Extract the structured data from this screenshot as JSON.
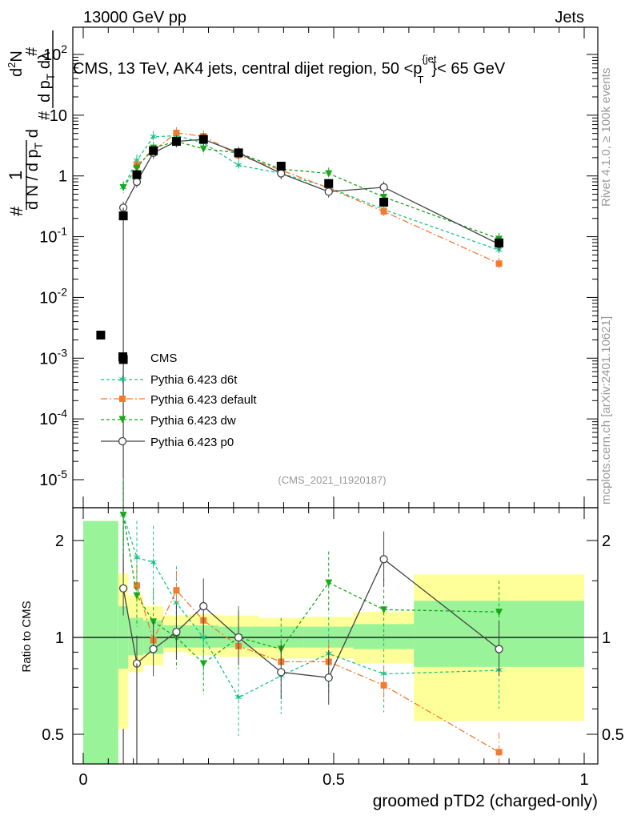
{
  "header": {
    "left": "13000 GeV pp",
    "right": "Jets"
  },
  "plot_title": "CMS, 13 TeV, AK4 jets, central dijet region, 50 <p_T^{jet}< 65 GeV",
  "plot_title_parts": {
    "a": "CMS, 13 TeV, AK4 jets, central dijet region, 50 <p",
    "sup": "{jet",
    "sub": "T",
    "b": "}< 65 GeV"
  },
  "side_text": {
    "rivet": "Rivet 4.1.0, ≥ 100k events",
    "mcplots": "mcplots.cern.ch [arXiv:2401.10621]"
  },
  "analysis_id": "(CMS_2021_I1920187)",
  "legend": {
    "cms": "CMS",
    "d6t": "Pythia 6.423 d6t",
    "default": "Pythia 6.423 default",
    "dw": "Pythia 6.423 dw",
    "p0": "Pythia 6.423 p0"
  },
  "colors": {
    "cms": "#000000",
    "d6t": "#17c48a",
    "default": "#f47a30",
    "dw": "#18a818",
    "p0": "#444444",
    "band_yellow": "#ffff99",
    "band_green": "#99f399"
  },
  "chart_data": {
    "type": "line",
    "xlabel": "groomed pTD2 (charged-only)",
    "ylabel_main": "1/N dN/dp_T dλ / d²N/dp_T dλ",
    "ylabel_ratio": "Ratio to CMS",
    "xlim": [
      0,
      1
    ],
    "ylim_main": [
      3e-06,
      300
    ],
    "ylim_ratio": [
      0.33,
      2.3
    ],
    "x_ticks": [
      "0",
      "0.5",
      "1"
    ],
    "y_ticks_main": [
      "10^{-5}",
      "10^{-4}",
      "10^{-3}",
      "10^{-2}",
      "10^{-1}",
      "1",
      "10",
      "10^{2}"
    ],
    "y_ticks_ratio": [
      "0.5",
      "1",
      "2"
    ],
    "cms": {
      "x": [
        0.035,
        0.08,
        0.107,
        0.14,
        0.186,
        0.24,
        0.31,
        0.395,
        0.49,
        0.6,
        0.83
      ],
      "y": [
        0.0024,
        0.22,
        1.05,
        2.6,
        3.7,
        4.0,
        2.4,
        1.45,
        0.75,
        0.37,
        0.079
      ],
      "y_extra": {
        "x": 0.08,
        "y": 0.00095
      }
    },
    "d6t": {
      "x": [
        0.08,
        0.107,
        0.14,
        0.186,
        0.24,
        0.31,
        0.395,
        0.49,
        0.6,
        0.83
      ],
      "y": [
        0.65,
        1.8,
        4.4,
        4.6,
        3.5,
        1.5,
        1.1,
        0.65,
        0.28,
        0.06
      ]
    },
    "default": {
      "x": [
        0.107,
        0.14,
        0.186,
        0.24,
        0.31,
        0.395,
        0.49,
        0.6,
        0.83
      ],
      "y": [
        1.5,
        2.6,
        5.1,
        4.5,
        2.2,
        1.25,
        0.63,
        0.26,
        0.036
      ]
    },
    "dw": {
      "x": [
        0.08,
        0.107,
        0.14,
        0.186,
        0.24,
        0.31,
        0.395,
        0.49,
        0.6,
        0.83
      ],
      "y": [
        0.65,
        1.35,
        2.9,
        3.7,
        2.8,
        2.4,
        1.3,
        1.1,
        0.45,
        0.092
      ]
    },
    "p0": {
      "x": [
        0.08,
        0.107,
        0.14,
        0.186,
        0.24,
        0.31,
        0.395,
        0.49,
        0.6,
        0.83
      ],
      "y": [
        0.3,
        0.8,
        2.4,
        3.7,
        4.0,
        2.4,
        1.1,
        0.55,
        0.65,
        0.075
      ]
    },
    "ratio": {
      "d6t": {
        "x": [
          0.08,
          0.107,
          0.14,
          0.186,
          0.24,
          0.31,
          0.395,
          0.49,
          0.6,
          0.83
        ],
        "y": [
          2.4,
          1.77,
          1.71,
          1.28,
          1.0,
          0.65,
          0.76,
          0.89,
          0.77,
          0.79
        ]
      },
      "default": {
        "x": [
          0.107,
          0.14,
          0.186,
          0.24,
          0.31,
          0.395,
          0.49,
          0.6,
          0.83
        ],
        "y": [
          1.45,
          0.98,
          1.4,
          1.13,
          0.94,
          0.84,
          0.84,
          0.71,
          0.44
        ]
      },
      "dw": {
        "x": [
          0.08,
          0.107,
          0.14,
          0.186,
          0.24,
          0.31,
          0.395,
          0.49,
          0.6,
          0.83
        ],
        "y": [
          2.4,
          1.35,
          1.12,
          1.0,
          0.83,
          1.0,
          0.92,
          1.48,
          1.22,
          1.2
        ]
      },
      "p0": {
        "x": [
          0.08,
          0.107,
          0.14,
          0.186,
          0.24,
          0.31,
          0.395,
          0.49,
          0.6,
          0.83
        ],
        "y": [
          1.42,
          0.83,
          0.92,
          1.04,
          1.25,
          1.0,
          0.78,
          0.75,
          1.75,
          0.92
        ]
      }
    },
    "bands": {
      "edges": [
        0,
        0.07,
        0.09,
        0.12,
        0.16,
        0.21,
        0.27,
        0.35,
        0.44,
        0.54,
        0.66,
        1.0
      ],
      "yellow": [
        [
          0.33,
          2.3
        ],
        [
          0.52,
          1.58
        ],
        [
          0.78,
          1.35
        ],
        [
          0.82,
          1.25
        ],
        [
          0.9,
          1.17
        ],
        [
          0.88,
          1.18
        ],
        [
          0.87,
          1.17
        ],
        [
          0.86,
          1.15
        ],
        [
          0.86,
          1.16
        ],
        [
          0.83,
          1.2
        ],
        [
          0.55,
          1.57
        ]
      ],
      "green": [
        [
          0.33,
          2.3
        ],
        [
          0.8,
          1.25
        ],
        [
          0.88,
          1.15
        ],
        [
          0.89,
          1.13
        ],
        [
          0.93,
          1.09
        ],
        [
          0.93,
          1.09
        ],
        [
          0.93,
          1.08
        ],
        [
          0.93,
          1.08
        ],
        [
          0.93,
          1.08
        ],
        [
          0.92,
          1.1
        ],
        [
          0.81,
          1.3
        ]
      ]
    }
  }
}
